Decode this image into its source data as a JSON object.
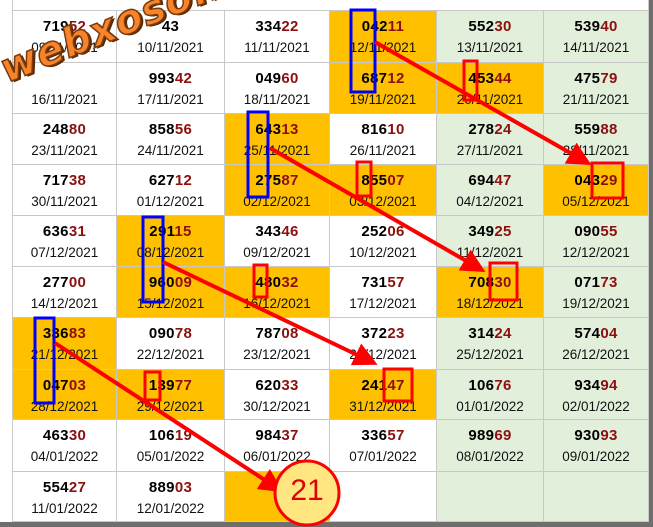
{
  "watermark": "webxoso.net",
  "colors": {
    "highlight": "#ffc000",
    "green_column": "#e2efda",
    "number_tail": "#8b1010",
    "annotation_red": "#ff0000",
    "annotation_blue": "#0000ff"
  },
  "grid": {
    "rows": [
      [
        {
          "number": "71952",
          "date": "09/11/2021",
          "hl": false
        },
        {
          "number": "43",
          "date": "10/11/2021",
          "hl": false
        },
        {
          "number": "33422",
          "date": "11/11/2021",
          "hl": false
        },
        {
          "number": "04211",
          "date": "12/11/2021",
          "hl": true
        },
        {
          "number": "55230",
          "date": "13/11/2021",
          "hl": false
        },
        {
          "number": "53940",
          "date": "14/11/2021",
          "hl": false
        }
      ],
      [
        {
          "number": "",
          "date": "16/11/2021",
          "hl": false
        },
        {
          "number": "99342",
          "date": "17/11/2021",
          "hl": false
        },
        {
          "number": "04960",
          "date": "18/11/2021",
          "hl": false
        },
        {
          "number": "68712",
          "date": "19/11/2021",
          "hl": true
        },
        {
          "number": "45344",
          "date": "20/11/2021",
          "hl": true
        },
        {
          "number": "47579",
          "date": "21/11/2021",
          "hl": false
        }
      ],
      [
        {
          "number": "24880",
          "date": "23/11/2021",
          "hl": false
        },
        {
          "number": "85856",
          "date": "24/11/2021",
          "hl": false
        },
        {
          "number": "64313",
          "date": "25/11/2021",
          "hl": true
        },
        {
          "number": "81610",
          "date": "26/11/2021",
          "hl": false
        },
        {
          "number": "27824",
          "date": "27/11/2021",
          "hl": false
        },
        {
          "number": "55988",
          "date": "28/11/2021",
          "hl": false
        }
      ],
      [
        {
          "number": "71738",
          "date": "30/11/2021",
          "hl": false
        },
        {
          "number": "62712",
          "date": "01/12/2021",
          "hl": false
        },
        {
          "number": "27587",
          "date": "02/12/2021",
          "hl": true
        },
        {
          "number": "85507",
          "date": "03/12/2021",
          "hl": true
        },
        {
          "number": "69447",
          "date": "04/12/2021",
          "hl": false
        },
        {
          "number": "04329",
          "date": "05/12/2021",
          "hl": true
        }
      ],
      [
        {
          "number": "63631",
          "date": "07/12/2021",
          "hl": false
        },
        {
          "number": "29115",
          "date": "08/12/2021",
          "hl": true
        },
        {
          "number": "34346",
          "date": "09/12/2021",
          "hl": false
        },
        {
          "number": "25206",
          "date": "10/12/2021",
          "hl": false
        },
        {
          "number": "34925",
          "date": "11/12/2021",
          "hl": false
        },
        {
          "number": "09055",
          "date": "12/12/2021",
          "hl": false
        }
      ],
      [
        {
          "number": "27700",
          "date": "14/12/2021",
          "hl": false
        },
        {
          "number": "96009",
          "date": "15/12/2021",
          "hl": true
        },
        {
          "number": "48032",
          "date": "16/12/2021",
          "hl": true
        },
        {
          "number": "73157",
          "date": "17/12/2021",
          "hl": false
        },
        {
          "number": "70830",
          "date": "18/12/2021",
          "hl": true
        },
        {
          "number": "07173",
          "date": "19/12/2021",
          "hl": false
        }
      ],
      [
        {
          "number": "33683",
          "date": "21/12/2021",
          "hl": true
        },
        {
          "number": "09078",
          "date": "22/12/2021",
          "hl": false
        },
        {
          "number": "78708",
          "date": "23/12/2021",
          "hl": false
        },
        {
          "number": "37223",
          "date": "24/12/2021",
          "hl": false
        },
        {
          "number": "31424",
          "date": "25/12/2021",
          "hl": false
        },
        {
          "number": "57404",
          "date": "26/12/2021",
          "hl": false
        }
      ],
      [
        {
          "number": "04703",
          "date": "28/12/2021",
          "hl": true
        },
        {
          "number": "13977",
          "date": "29/12/2021",
          "hl": true
        },
        {
          "number": "62033",
          "date": "30/12/2021",
          "hl": false
        },
        {
          "number": "24147",
          "date": "31/12/2021",
          "hl": true
        },
        {
          "number": "10676",
          "date": "01/01/2022",
          "hl": false
        },
        {
          "number": "93494",
          "date": "02/01/2022",
          "hl": false
        }
      ],
      [
        {
          "number": "46330",
          "date": "04/01/2022",
          "hl": false
        },
        {
          "number": "10619",
          "date": "05/01/2022",
          "hl": false
        },
        {
          "number": "98437",
          "date": "06/01/2022",
          "hl": false
        },
        {
          "number": "33657",
          "date": "07/01/2022",
          "hl": false
        },
        {
          "number": "98969",
          "date": "08/01/2022",
          "hl": false
        },
        {
          "number": "93093",
          "date": "09/01/2022",
          "hl": false
        }
      ],
      [
        {
          "number": "55427",
          "date": "11/01/2022",
          "hl": false
        },
        {
          "number": "88903",
          "date": "12/01/2022",
          "hl": false
        },
        {
          "number": "",
          "date": "",
          "hl": true
        },
        {
          "number": "",
          "date": "",
          "hl": false
        },
        {
          "number": "",
          "date": "",
          "hl": false
        },
        {
          "number": "",
          "date": "",
          "hl": false
        }
      ]
    ]
  },
  "prediction": "21"
}
